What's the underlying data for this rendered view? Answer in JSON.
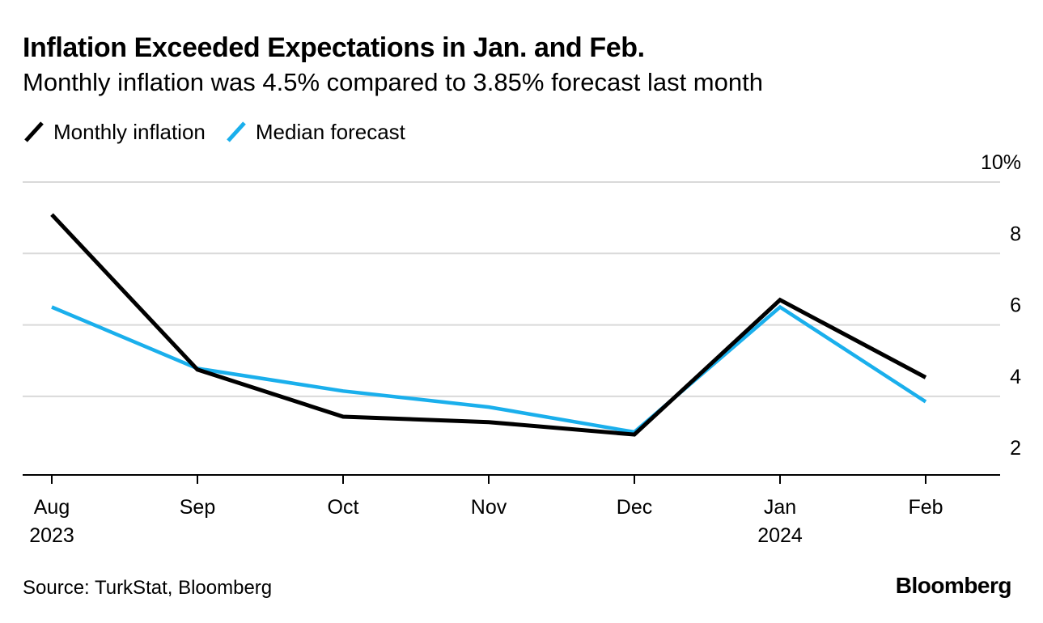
{
  "colors": {
    "monthly_inflation": "#000000",
    "median_forecast": "#1aafec",
    "grid": "#d9d9d9",
    "axis": "#000000"
  },
  "chart_data": {
    "type": "line",
    "title": "Inflation Exceeded Expectations in Jan. and Feb.",
    "subtitle": "Monthly inflation was 4.5% compared to 3.85% forecast last month",
    "categories": [
      "Aug",
      "Sep",
      "Oct",
      "Nov",
      "Dec",
      "Jan",
      "Feb"
    ],
    "category_sublabels": [
      "2023",
      "",
      "",
      "",
      "",
      "2024",
      ""
    ],
    "series": [
      {
        "name": "Monthly inflation",
        "color": "#000000",
        "values": [
          9.09,
          4.75,
          3.43,
          3.28,
          2.93,
          6.7,
          4.53
        ]
      },
      {
        "name": "Median forecast",
        "color": "#1aafec",
        "values": [
          6.5,
          4.78,
          4.15,
          3.7,
          3.0,
          6.5,
          3.85
        ]
      }
    ],
    "ylim": [
      1.8,
      10
    ],
    "yticks": [
      {
        "value": 10,
        "label": "10%"
      },
      {
        "value": 8,
        "label": "8"
      },
      {
        "value": 6,
        "label": "6"
      },
      {
        "value": 4,
        "label": "4"
      },
      {
        "value": 2,
        "label": "2"
      }
    ],
    "xlabel": "",
    "ylabel": "",
    "grid": true,
    "legend": "top-left"
  },
  "footer": {
    "source": "Source: TurkStat, Bloomberg",
    "brand": "Bloomberg"
  }
}
